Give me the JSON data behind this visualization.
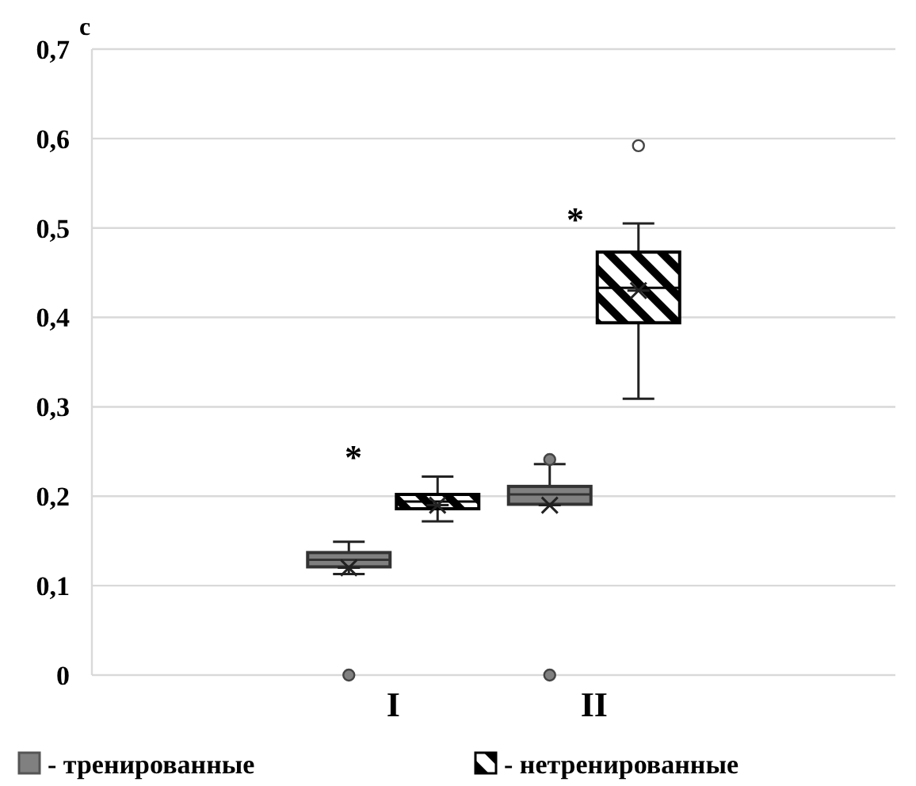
{
  "chart_data": {
    "type": "box",
    "ylabel": "c",
    "categories": [
      "I",
      "II"
    ],
    "ylim": [
      0,
      0.7
    ],
    "yticks": [
      0,
      {
        "value": 0.1,
        "label": "0,1"
      },
      {
        "value": 0.2,
        "label": "0,2"
      },
      {
        "value": 0.3,
        "label": "0,3"
      },
      {
        "value": 0.4,
        "label": "0,4"
      },
      {
        "value": 0.5,
        "label": "0,5"
      },
      {
        "value": 0.6,
        "label": "0,6"
      },
      {
        "value": 0.7,
        "label": "0,7"
      }
    ],
    "grid": "y",
    "legend": "bottom",
    "series": [
      {
        "name": "- тренированные",
        "color": "#808080",
        "boxes": [
          {
            "low": 0.113,
            "q1": 0.121,
            "median": 0.129,
            "q3": 0.137,
            "high": 0.149,
            "mean": 0.12,
            "outliers": [
              0
            ]
          },
          {
            "low": 0.191,
            "q1": 0.191,
            "median": 0.202,
            "q3": 0.211,
            "high": 0.236,
            "mean": 0.19,
            "outliers": [
              0,
              0.241
            ]
          }
        ]
      },
      {
        "name": "- нетренированные",
        "color": "#000000",
        "boxes": [
          {
            "low": 0.172,
            "q1": 0.186,
            "median": 0.194,
            "q3": 0.202,
            "high": 0.222,
            "mean": 0.19
          },
          {
            "low": 0.309,
            "q1": 0.394,
            "median": 0.433,
            "q3": 0.473,
            "high": 0.505,
            "mean": 0.43,
            "outliers": [
              0.592
            ]
          }
        ]
      }
    ],
    "annotations": [
      "*",
      "*"
    ]
  }
}
